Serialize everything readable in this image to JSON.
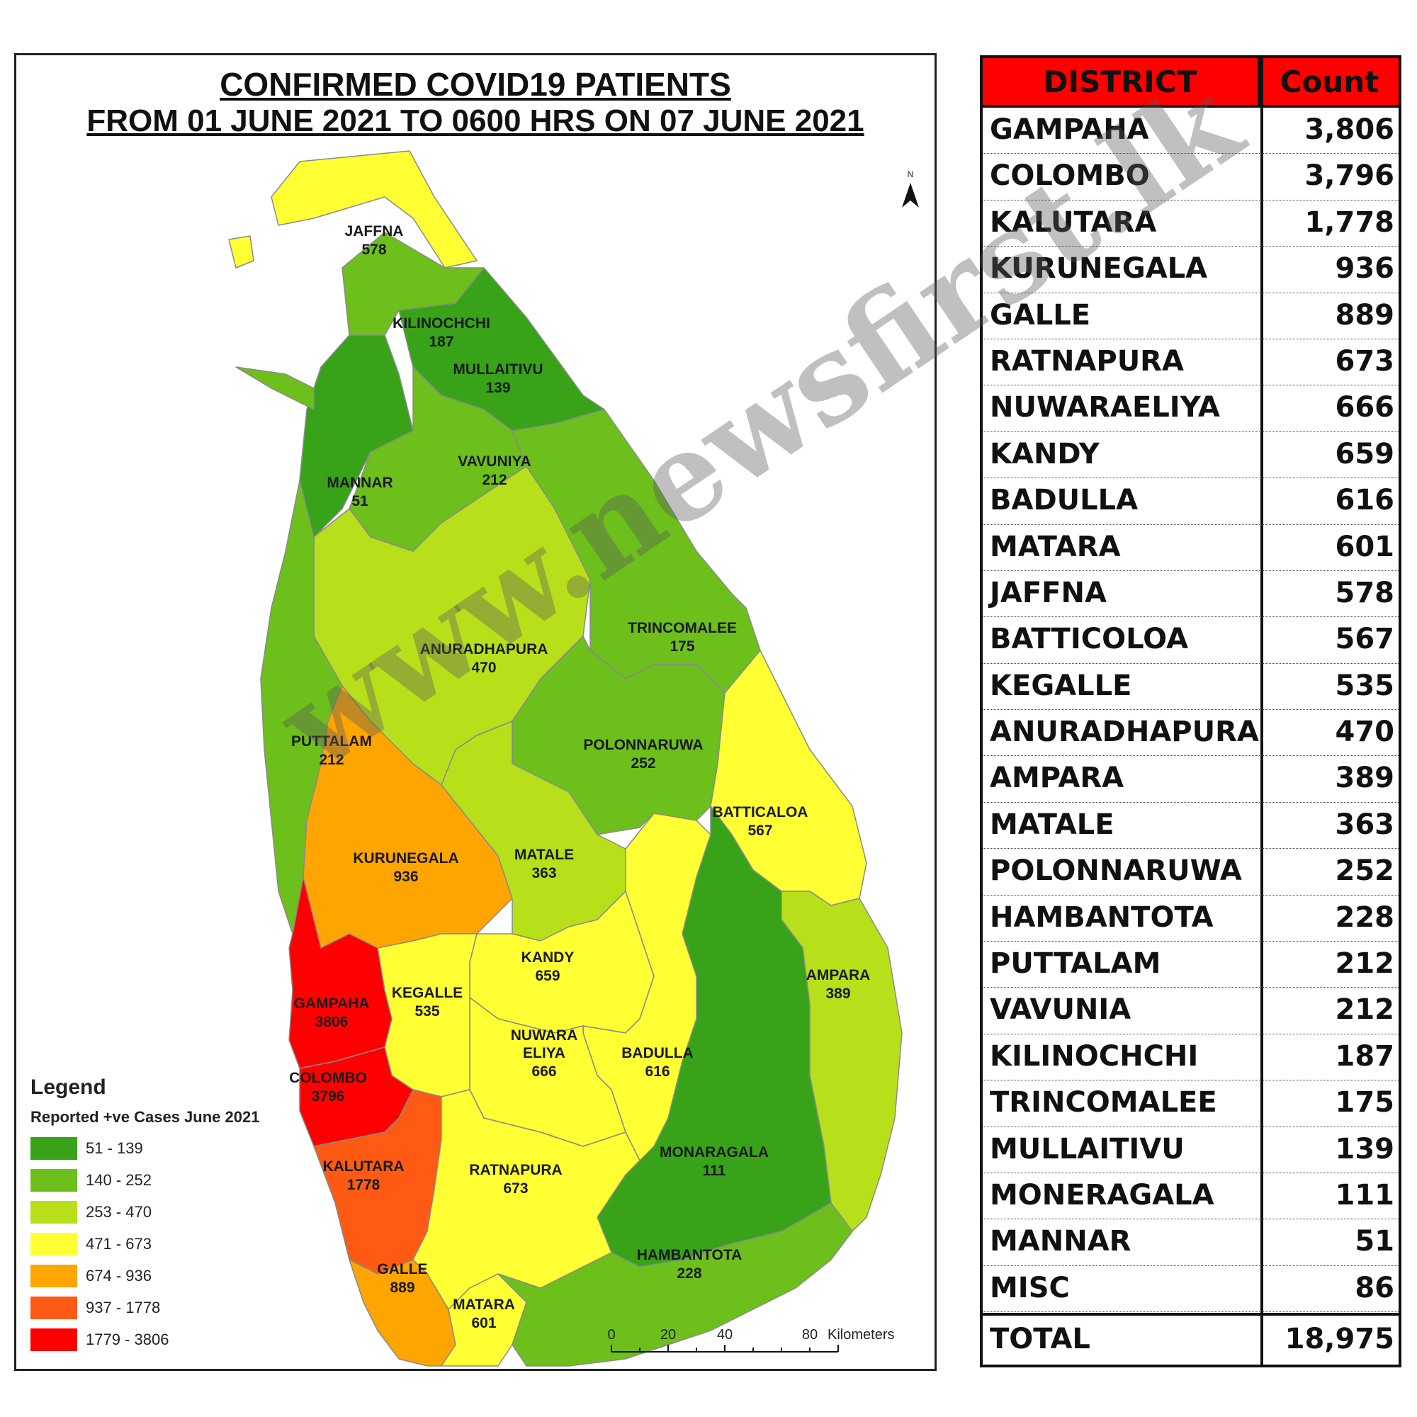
{
  "map": {
    "title_line1": "CONFIRMED COVID19 PATIENTS",
    "title_line2": "FROM 01 JUNE 2021 TO 0600 HRS ON 07 JUNE  2021",
    "north_label": "N",
    "legend": {
      "title": "Legend",
      "subtitle": "Reported +ve Cases June 2021",
      "classes": [
        {
          "range": "51 - 139",
          "color": "#38a318"
        },
        {
          "range": "140 - 252",
          "color": "#6dbf1c"
        },
        {
          "range": "253 - 470",
          "color": "#b8e01a"
        },
        {
          "range": "471 - 673",
          "color": "#ffff33"
        },
        {
          "range": "674 - 936",
          "color": "#ffa500"
        },
        {
          "range": "937 - 1778",
          "color": "#ff5a14"
        },
        {
          "range": "1779 - 3806",
          "color": "#ff0000"
        }
      ]
    },
    "scale": {
      "ticks": [
        "0",
        "20",
        "40",
        "80"
      ],
      "unit": "Kilometers"
    },
    "district_labels": [
      {
        "name": "JAFFNA",
        "value": "578"
      },
      {
        "name": "KILINOCHCHI",
        "value": "187"
      },
      {
        "name": "MULLAITIVU",
        "value": "139"
      },
      {
        "name": "VAVUNIYA",
        "value": "212"
      },
      {
        "name": "MANNAR",
        "value": "51"
      },
      {
        "name": "ANURADHAPURA",
        "value": "470"
      },
      {
        "name": "TRINCOMALEE",
        "value": "175"
      },
      {
        "name": "PUTTALAM",
        "value": "212"
      },
      {
        "name": "POLONNARUWA",
        "value": "252"
      },
      {
        "name": "BATTICALOA",
        "value": "567"
      },
      {
        "name": "KURUNEGALA",
        "value": "936"
      },
      {
        "name": "MATALE",
        "value": "363"
      },
      {
        "name": "KANDY",
        "value": "659"
      },
      {
        "name": "AMPARA",
        "value": "389"
      },
      {
        "name": "GAMPAHA",
        "value": "3806"
      },
      {
        "name": "KEGALLE",
        "value": "535"
      },
      {
        "name": "NUWARA",
        "value": ""
      },
      {
        "name": "ELIYA",
        "value": "666"
      },
      {
        "name": "BADULLA",
        "value": "616"
      },
      {
        "name": "COLOMBO",
        "value": "3796"
      },
      {
        "name": "MONARAGALA",
        "value": "111"
      },
      {
        "name": "KALUTARA",
        "value": "1778"
      },
      {
        "name": "RATNAPURA",
        "value": "673"
      },
      {
        "name": "HAMBANTOTA",
        "value": "228"
      },
      {
        "name": "GALLE",
        "value": "889"
      },
      {
        "name": "MATARA",
        "value": "601"
      }
    ]
  },
  "table": {
    "header_district": "DISTRICT",
    "header_count": "Count",
    "rows": [
      {
        "district": "GAMPAHA",
        "count": "3,806"
      },
      {
        "district": "COLOMBO",
        "count": "3,796"
      },
      {
        "district": "KALUTARA",
        "count": "1,778"
      },
      {
        "district": "KURUNEGALA",
        "count": "936"
      },
      {
        "district": "GALLE",
        "count": "889"
      },
      {
        "district": "RATNAPURA",
        "count": "673"
      },
      {
        "district": "NUWARAELIYA",
        "count": "666"
      },
      {
        "district": "KANDY",
        "count": "659"
      },
      {
        "district": "BADULLA",
        "count": "616"
      },
      {
        "district": "MATARA",
        "count": "601"
      },
      {
        "district": "JAFFNA",
        "count": "578"
      },
      {
        "district": "BATTICOLOA",
        "count": "567"
      },
      {
        "district": "KEGALLE",
        "count": "535"
      },
      {
        "district": "ANURADHAPURA",
        "count": "470"
      },
      {
        "district": "AMPARA",
        "count": "389"
      },
      {
        "district": "MATALE",
        "count": "363"
      },
      {
        "district": "POLONNARUWA",
        "count": "252"
      },
      {
        "district": "HAMBANTOTA",
        "count": "228"
      },
      {
        "district": "PUTTALAM",
        "count": "212"
      },
      {
        "district": "VAVUNIA",
        "count": "212"
      },
      {
        "district": "KILINOCHCHI",
        "count": "187"
      },
      {
        "district": "TRINCOMALEE",
        "count": "175"
      },
      {
        "district": "MULLAITIVU",
        "count": "139"
      },
      {
        "district": "MONERAGALA",
        "count": "111"
      },
      {
        "district": "MANNAR",
        "count": "51"
      },
      {
        "district": "MISC",
        "count": "86"
      }
    ],
    "total_label": "TOTAL",
    "total_value": "18,975"
  },
  "watermark": "www.newsfirst.lk"
}
